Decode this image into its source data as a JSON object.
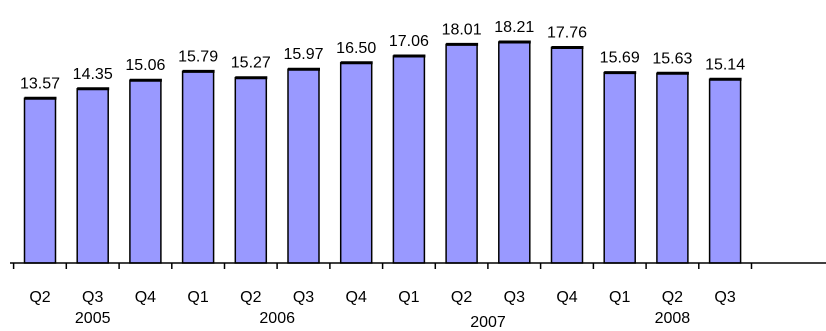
{
  "chart_data": {
    "type": "bar",
    "categories": [
      "Q2",
      "Q3",
      "Q4",
      "Q1",
      "Q2",
      "Q3",
      "Q4",
      "Q1",
      "Q2",
      "Q3",
      "Q4",
      "Q1",
      "Q2",
      "Q3"
    ],
    "values": [
      13.57,
      14.35,
      15.06,
      15.79,
      15.27,
      15.97,
      16.5,
      17.06,
      18.01,
      18.21,
      17.76,
      15.69,
      15.63,
      15.14
    ],
    "value_labels": [
      "13.57",
      "14.35",
      "15.06",
      "15.79",
      "15.27",
      "15.97",
      "16.50",
      "17.06",
      "18.01",
      "18.21",
      "17.76",
      "15.69",
      "15.63",
      "15.14"
    ],
    "years": [
      {
        "label": "2005",
        "from": 0,
        "to": 2
      },
      {
        "label": "2006",
        "from": 3,
        "to": 6
      },
      {
        "label": "2007",
        "from": 7,
        "to": 10
      },
      {
        "label": "2008",
        "from": 11,
        "to": 13
      }
    ],
    "ylim": [
      0,
      18.21
    ],
    "grid": false,
    "title": "",
    "xlabel": "",
    "ylabel": "",
    "colors": {
      "bar_fill": "#9999ff",
      "bar_stroke": "#000000",
      "axis": "#000000"
    }
  }
}
